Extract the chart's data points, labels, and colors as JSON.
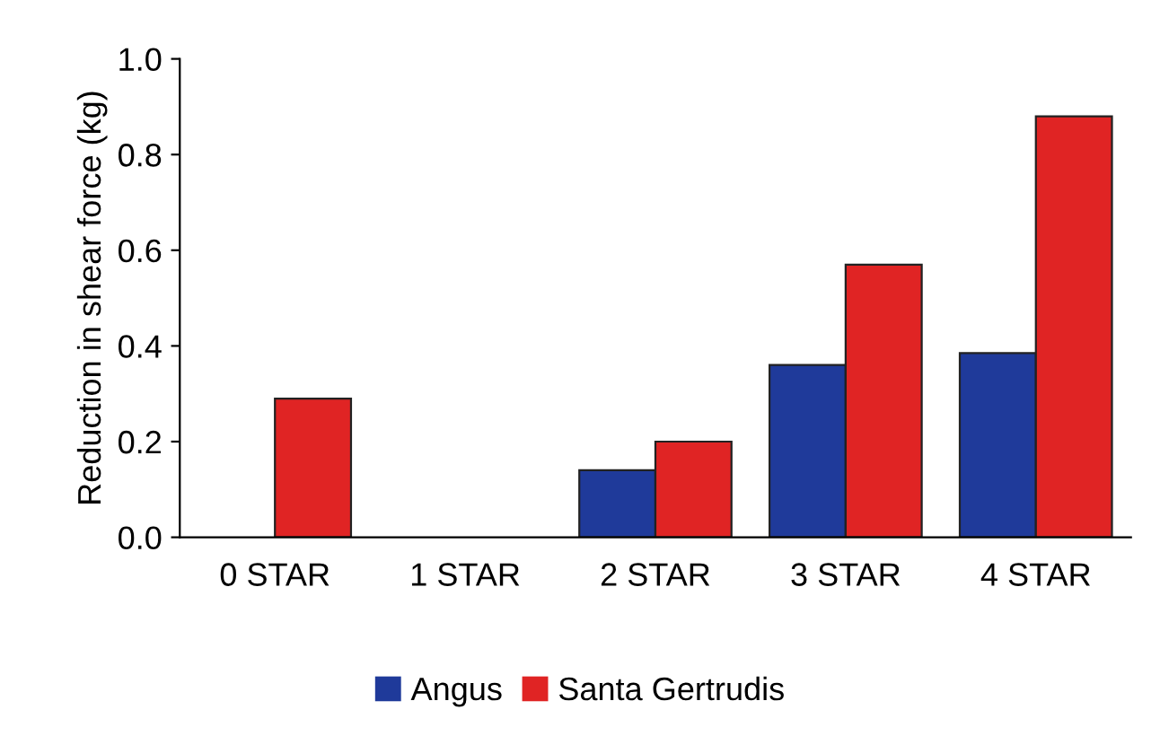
{
  "chart_data": {
    "type": "bar",
    "ylabel": "Reduction in shear force (kg)",
    "categories": [
      "0 STAR",
      "1 STAR",
      "2 STAR",
      "3 STAR",
      "4 STAR"
    ],
    "series": [
      {
        "name": "Angus",
        "color": "#1f3a9a",
        "values": [
          0,
          0,
          0.14,
          0.36,
          0.385
        ]
      },
      {
        "name": "Santa Gertrudis",
        "color": "#e02424",
        "values": [
          0.29,
          0,
          0.2,
          0.57,
          0.88
        ]
      }
    ],
    "ylim": [
      0,
      1
    ],
    "yticks": [
      {
        "value": 0,
        "label": "0.0"
      },
      0.2,
      0.4,
      0.6,
      0.8,
      {
        "value": 1,
        "label": "1.0"
      }
    ],
    "grid": false,
    "legend": "bottom"
  }
}
